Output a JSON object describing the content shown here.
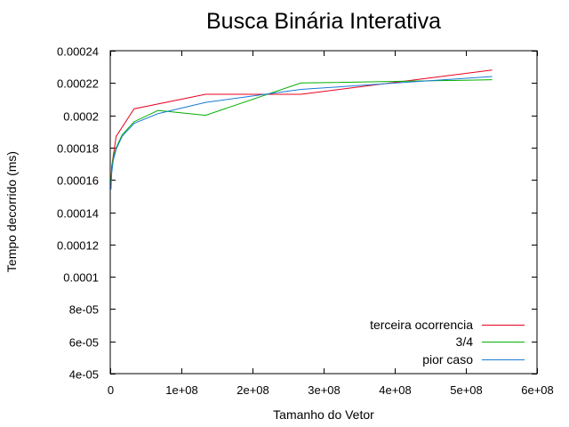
{
  "chart_data": {
    "type": "line",
    "title": "Busca Binária Interativa",
    "xlabel": "Tamanho do Vetor",
    "ylabel": "Tempo decorrido (ms)",
    "xlim": [
      0,
      600000000
    ],
    "ylim": [
      4e-05,
      0.00024
    ],
    "xticks": [
      0,
      100000000,
      200000000,
      300000000,
      400000000,
      500000000,
      600000000
    ],
    "xtick_labels": [
      "0",
      "1e+08",
      "2e+08",
      "3e+08",
      "4e+08",
      "5e+08",
      "6e+08"
    ],
    "yticks": [
      4e-05,
      6e-05,
      8e-05,
      0.0001,
      0.00012,
      0.00014,
      0.00016,
      0.00018,
      0.0002,
      0.00022,
      0.00024
    ],
    "ytick_labels": [
      "4e-05",
      "6e-05",
      "8e-05",
      "0.0001",
      "0.00012",
      "0.00014",
      "0.00016",
      "0.00018",
      "0.0002",
      "0.00022",
      "0.00024"
    ],
    "grid": false,
    "legend_position": "bottom-right",
    "series": [
      {
        "name": "terceira ocorrencia",
        "color": "#e8001e",
        "points": [
          [
            1000000,
            0.000155
          ],
          [
            2000000,
            0.000168
          ],
          [
            4200000,
            0.000175
          ],
          [
            8400000,
            0.000187
          ],
          [
            33500000,
            0.000204
          ],
          [
            134000000,
            0.000213
          ],
          [
            268000000,
            0.000213
          ],
          [
            537000000,
            0.000228
          ]
        ]
      },
      {
        "name": "3/4",
        "color": "#00b000",
        "points": [
          [
            1000000,
            0.000158
          ],
          [
            2000000,
            0.000166
          ],
          [
            4200000,
            0.000174
          ],
          [
            8400000,
            0.00018
          ],
          [
            16800000,
            0.000188
          ],
          [
            33500000,
            0.000196
          ],
          [
            67100000,
            0.000203
          ],
          [
            134000000,
            0.0002
          ],
          [
            268000000,
            0.00022
          ],
          [
            537000000,
            0.000222
          ]
        ]
      },
      {
        "name": "pior caso",
        "color": "#1a7ad8",
        "points": [
          [
            1000000,
            0.000154
          ],
          [
            2000000,
            0.000164
          ],
          [
            4200000,
            0.000172
          ],
          [
            8400000,
            0.000179
          ],
          [
            16800000,
            0.000187
          ],
          [
            33500000,
            0.000195
          ],
          [
            67100000,
            0.000201
          ],
          [
            134000000,
            0.000208
          ],
          [
            268000000,
            0.000216
          ],
          [
            537000000,
            0.000224
          ]
        ]
      }
    ]
  }
}
